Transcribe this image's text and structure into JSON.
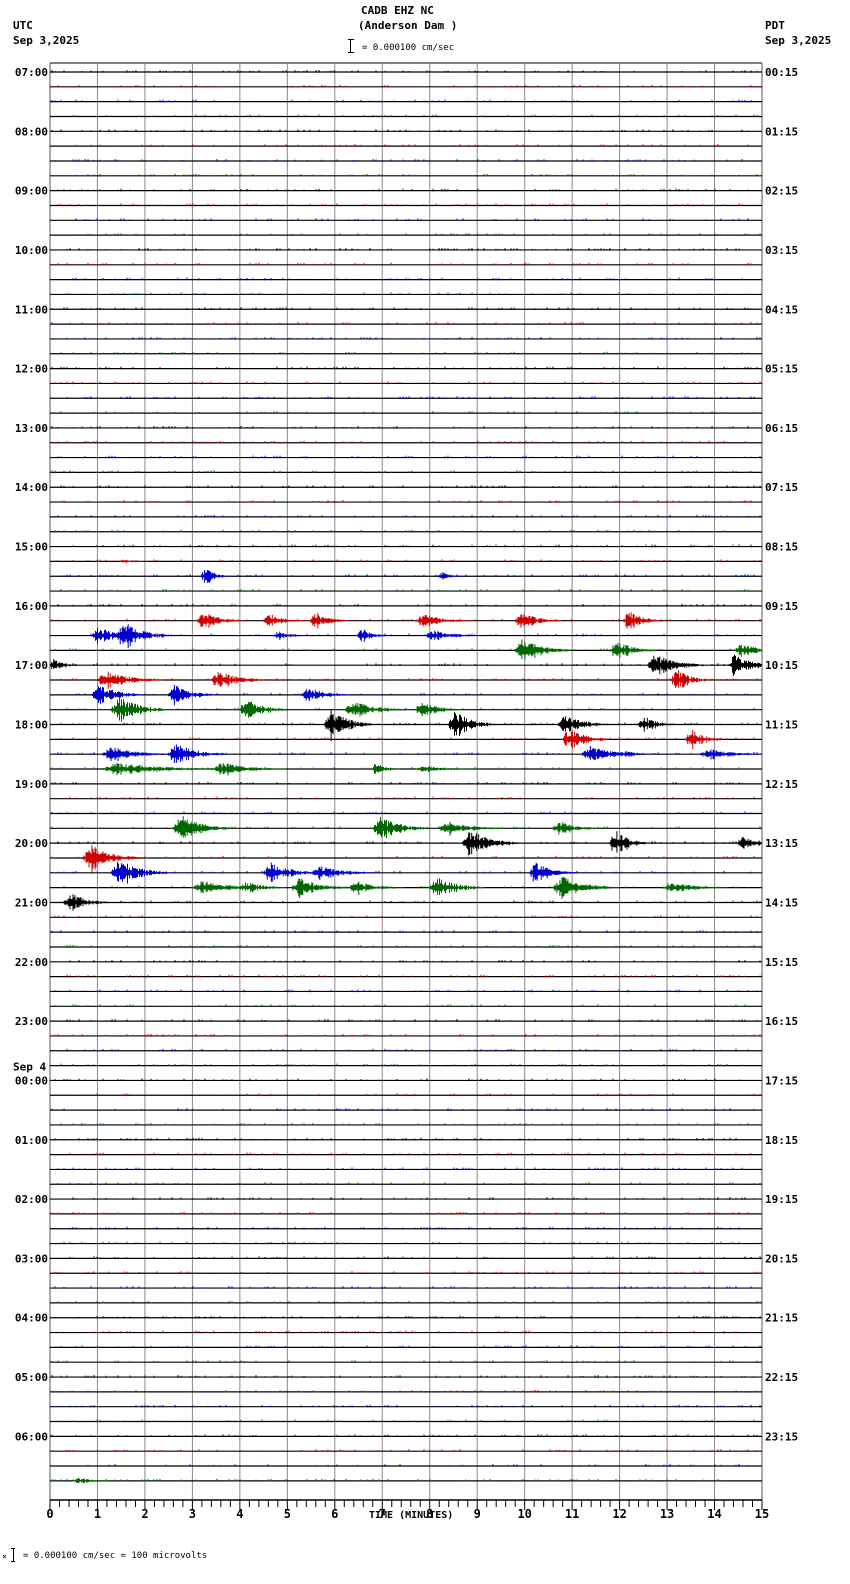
{
  "header": {
    "station": "CADB EHZ NC",
    "location": "(Anderson Dam )",
    "scale_text": "= 0.000100 cm/sec",
    "left_tz": "UTC",
    "left_date": "Sep 3,2025",
    "right_tz": "PDT",
    "right_date": "Sep 3,2025"
  },
  "footer": {
    "scale_text": "= 0.000100 cm/sec =     100 microvolts",
    "xlabel": "TIME (MINUTES)"
  },
  "colors": {
    "trace_cycle": [
      "#000000",
      "#cc0000",
      "#0000cc",
      "#006600"
    ],
    "grid": "#888888",
    "axis": "#000000"
  },
  "chart_data": {
    "type": "line",
    "title": "CADB EHZ NC (Anderson Dam )",
    "subtitle": "= 0.000100 cm/sec",
    "xlabel": "TIME (MINUTES)",
    "ylabel": "",
    "x_ticks": [
      0,
      1,
      2,
      3,
      4,
      5,
      6,
      7,
      8,
      9,
      10,
      11,
      12,
      13,
      14,
      15
    ],
    "xlim": [
      0,
      15
    ],
    "grid": true,
    "rows_per_hour": 4,
    "minutes_per_row": 15,
    "total_rows": 96,
    "left_labels": [
      {
        "row": 0,
        "text": "07:00"
      },
      {
        "row": 4,
        "text": "08:00"
      },
      {
        "row": 8,
        "text": "09:00"
      },
      {
        "row": 12,
        "text": "10:00"
      },
      {
        "row": 16,
        "text": "11:00"
      },
      {
        "row": 20,
        "text": "12:00"
      },
      {
        "row": 24,
        "text": "13:00"
      },
      {
        "row": 28,
        "text": "14:00"
      },
      {
        "row": 32,
        "text": "15:00"
      },
      {
        "row": 36,
        "text": "16:00"
      },
      {
        "row": 40,
        "text": "17:00"
      },
      {
        "row": 44,
        "text": "18:00"
      },
      {
        "row": 48,
        "text": "19:00"
      },
      {
        "row": 52,
        "text": "20:00"
      },
      {
        "row": 56,
        "text": "21:00"
      },
      {
        "row": 60,
        "text": "22:00"
      },
      {
        "row": 64,
        "text": "23:00"
      },
      {
        "row": 68,
        "text": "00:00",
        "date": "Sep 4"
      },
      {
        "row": 72,
        "text": "01:00"
      },
      {
        "row": 76,
        "text": "02:00"
      },
      {
        "row": 80,
        "text": "03:00"
      },
      {
        "row": 84,
        "text": "04:00"
      },
      {
        "row": 88,
        "text": "05:00"
      },
      {
        "row": 92,
        "text": "06:00"
      }
    ],
    "right_labels": [
      {
        "row": 0,
        "text": "00:15"
      },
      {
        "row": 4,
        "text": "01:15"
      },
      {
        "row": 8,
        "text": "02:15"
      },
      {
        "row": 12,
        "text": "03:15"
      },
      {
        "row": 16,
        "text": "04:15"
      },
      {
        "row": 20,
        "text": "05:15"
      },
      {
        "row": 24,
        "text": "06:15"
      },
      {
        "row": 28,
        "text": "07:15"
      },
      {
        "row": 32,
        "text": "08:15"
      },
      {
        "row": 36,
        "text": "09:15"
      },
      {
        "row": 40,
        "text": "10:15"
      },
      {
        "row": 44,
        "text": "11:15"
      },
      {
        "row": 48,
        "text": "12:15"
      },
      {
        "row": 52,
        "text": "13:15"
      },
      {
        "row": 56,
        "text": "14:15"
      },
      {
        "row": 60,
        "text": "15:15"
      },
      {
        "row": 64,
        "text": "16:15"
      },
      {
        "row": 68,
        "text": "17:15"
      },
      {
        "row": 72,
        "text": "18:15"
      },
      {
        "row": 76,
        "text": "19:15"
      },
      {
        "row": 80,
        "text": "20:15"
      },
      {
        "row": 84,
        "text": "21:15"
      },
      {
        "row": 88,
        "text": "22:15"
      },
      {
        "row": 92,
        "text": "23:15"
      }
    ],
    "events": [
      {
        "row": 33,
        "minute": 1.6,
        "amp": 2,
        "dur": 0.6
      },
      {
        "row": 34,
        "minute": 3.3,
        "amp": 8,
        "dur": 0.6
      },
      {
        "row": 34,
        "minute": 8.3,
        "amp": 5,
        "dur": 0.5
      },
      {
        "row": 37,
        "minute": 3.2,
        "amp": 8,
        "dur": 1.0
      },
      {
        "row": 37,
        "minute": 4.6,
        "amp": 6,
        "dur": 1.0
      },
      {
        "row": 37,
        "minute": 5.6,
        "amp": 8,
        "dur": 0.8
      },
      {
        "row": 37,
        "minute": 7.8,
        "amp": 6,
        "dur": 1.2
      },
      {
        "row": 37,
        "minute": 9.9,
        "amp": 8,
        "dur": 1.0
      },
      {
        "row": 37,
        "minute": 12.2,
        "amp": 10,
        "dur": 0.8
      },
      {
        "row": 38,
        "minute": 1.0,
        "amp": 8,
        "dur": 1.0
      },
      {
        "row": 38,
        "minute": 1.5,
        "amp": 12,
        "dur": 1.2
      },
      {
        "row": 38,
        "minute": 4.8,
        "amp": 4,
        "dur": 0.8
      },
      {
        "row": 38,
        "minute": 6.6,
        "amp": 7,
        "dur": 0.6
      },
      {
        "row": 38,
        "minute": 8.0,
        "amp": 5,
        "dur": 1.2
      },
      {
        "row": 39,
        "minute": 9.9,
        "amp": 10,
        "dur": 1.2
      },
      {
        "row": 39,
        "minute": 11.9,
        "amp": 9,
        "dur": 1.0
      },
      {
        "row": 39,
        "minute": 14.5,
        "amp": 6,
        "dur": 1.2
      },
      {
        "row": 40,
        "minute": 0.1,
        "amp": 6,
        "dur": 0.6
      },
      {
        "row": 40,
        "minute": 12.7,
        "amp": 10,
        "dur": 1.2
      },
      {
        "row": 40,
        "minute": 14.4,
        "amp": 10,
        "dur": 1.0
      },
      {
        "row": 41,
        "minute": 1.1,
        "amp": 8,
        "dur": 1.4
      },
      {
        "row": 41,
        "minute": 3.5,
        "amp": 8,
        "dur": 1.2
      },
      {
        "row": 41,
        "minute": 13.2,
        "amp": 10,
        "dur": 0.8
      },
      {
        "row": 42,
        "minute": 1.0,
        "amp": 10,
        "dur": 1.0
      },
      {
        "row": 42,
        "minute": 2.6,
        "amp": 9,
        "dur": 1.0
      },
      {
        "row": 42,
        "minute": 5.4,
        "amp": 7,
        "dur": 1.0
      },
      {
        "row": 43,
        "minute": 1.4,
        "amp": 12,
        "dur": 1.2
      },
      {
        "row": 43,
        "minute": 4.1,
        "amp": 10,
        "dur": 1.0
      },
      {
        "row": 43,
        "minute": 6.3,
        "amp": 8,
        "dur": 1.4
      },
      {
        "row": 43,
        "minute": 7.8,
        "amp": 8,
        "dur": 1.0
      },
      {
        "row": 44,
        "minute": 5.9,
        "amp": 14,
        "dur": 1.0
      },
      {
        "row": 44,
        "minute": 8.5,
        "amp": 12,
        "dur": 1.0
      },
      {
        "row": 44,
        "minute": 10.8,
        "amp": 8,
        "dur": 1.2
      },
      {
        "row": 44,
        "minute": 12.5,
        "amp": 8,
        "dur": 0.8
      },
      {
        "row": 45,
        "minute": 10.9,
        "amp": 10,
        "dur": 1.0
      },
      {
        "row": 45,
        "minute": 13.5,
        "amp": 10,
        "dur": 0.8
      },
      {
        "row": 46,
        "minute": 1.2,
        "amp": 7,
        "dur": 1.4
      },
      {
        "row": 46,
        "minute": 2.6,
        "amp": 10,
        "dur": 1.2
      },
      {
        "row": 46,
        "minute": 11.3,
        "amp": 7,
        "dur": 1.4
      },
      {
        "row": 46,
        "minute": 12.2,
        "amp": 5,
        "dur": 0.4
      },
      {
        "row": 46,
        "minute": 13.8,
        "amp": 5,
        "dur": 1.4
      },
      {
        "row": 47,
        "minute": 1.2,
        "amp": 6,
        "dur": 2.5
      },
      {
        "row": 47,
        "minute": 3.5,
        "amp": 6,
        "dur": 1.6
      },
      {
        "row": 47,
        "minute": 6.9,
        "amp": 6,
        "dur": 0.6
      },
      {
        "row": 47,
        "minute": 7.8,
        "amp": 3,
        "dur": 1.4
      },
      {
        "row": 51,
        "minute": 2.7,
        "amp": 12,
        "dur": 1.2
      },
      {
        "row": 51,
        "minute": 6.9,
        "amp": 10,
        "dur": 1.2
      },
      {
        "row": 51,
        "minute": 8.3,
        "amp": 6,
        "dur": 1.4
      },
      {
        "row": 51,
        "minute": 10.7,
        "amp": 7,
        "dur": 1.0
      },
      {
        "row": 52,
        "minute": 8.8,
        "amp": 12,
        "dur": 1.2
      },
      {
        "row": 52,
        "minute": 11.9,
        "amp": 12,
        "dur": 0.8
      },
      {
        "row": 52,
        "minute": 14.6,
        "amp": 8,
        "dur": 0.8
      },
      {
        "row": 53,
        "minute": 0.8,
        "amp": 12,
        "dur": 1.2
      },
      {
        "row": 54,
        "minute": 1.4,
        "amp": 12,
        "dur": 1.2
      },
      {
        "row": 54,
        "minute": 4.6,
        "amp": 9,
        "dur": 1.2
      },
      {
        "row": 54,
        "minute": 5.6,
        "amp": 6,
        "dur": 1.4
      },
      {
        "row": 54,
        "minute": 10.2,
        "amp": 9,
        "dur": 1.0
      },
      {
        "row": 55,
        "minute": 3.1,
        "amp": 6,
        "dur": 1.6
      },
      {
        "row": 55,
        "minute": 4.1,
        "amp": 6,
        "dur": 1.0
      },
      {
        "row": 55,
        "minute": 5.2,
        "amp": 9,
        "dur": 1.2
      },
      {
        "row": 55,
        "minute": 6.4,
        "amp": 6,
        "dur": 1.2
      },
      {
        "row": 55,
        "minute": 8.1,
        "amp": 9,
        "dur": 1.2
      },
      {
        "row": 55,
        "minute": 10.7,
        "amp": 10,
        "dur": 1.4
      },
      {
        "row": 55,
        "minute": 13.0,
        "amp": 5,
        "dur": 1.4
      },
      {
        "row": 56,
        "minute": 0.4,
        "amp": 9,
        "dur": 1.0
      },
      {
        "row": 95,
        "minute": 0.6,
        "amp": 3,
        "dur": 0.8
      }
    ]
  }
}
